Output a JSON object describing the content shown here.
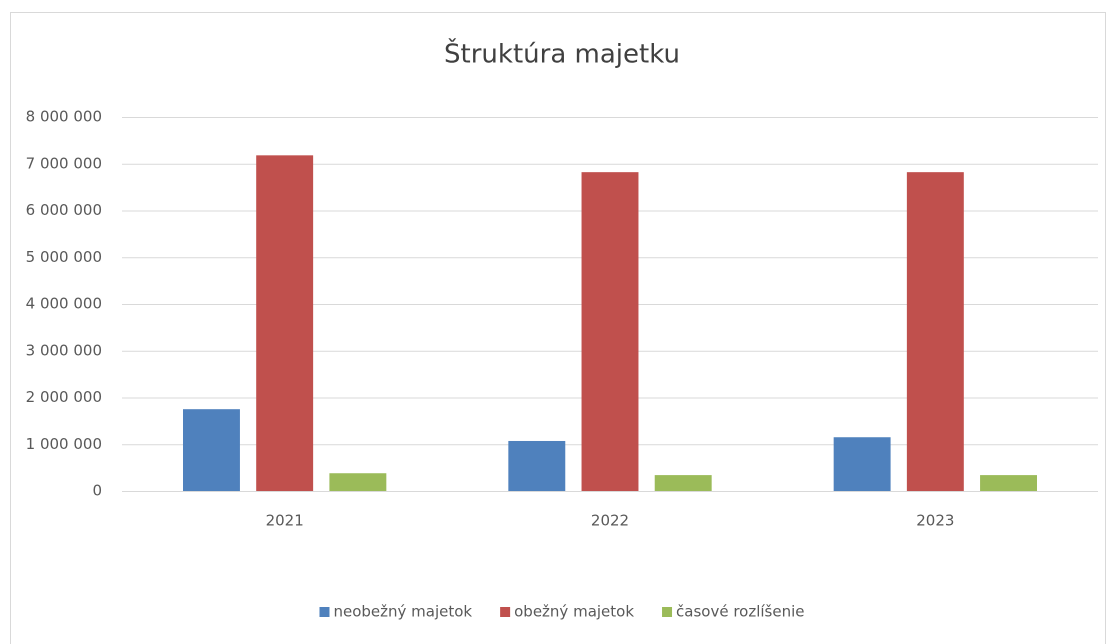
{
  "chart_data": {
    "type": "bar",
    "title": "Štruktúra majetku",
    "categories": [
      "2021",
      "2022",
      "2023"
    ],
    "series": [
      {
        "name": "neobežný majetok",
        "color": "#4f81bd",
        "values": [
          1750000,
          1070000,
          1150000
        ]
      },
      {
        "name": "obežný majetok",
        "color": "#c0504d",
        "values": [
          7180000,
          6820000,
          6820000
        ]
      },
      {
        "name": "časové rozlíšenie",
        "color": "#9bbb59",
        "values": [
          380000,
          340000,
          340000
        ]
      }
    ],
    "ylim": [
      0,
      8000000
    ],
    "yticks": [
      0,
      {
        "value": 1000000,
        "label": "1 000 000"
      },
      {
        "value": 2000000,
        "label": "2 000 000"
      },
      {
        "value": 3000000,
        "label": "3 000 000"
      },
      {
        "value": 4000000,
        "label": "4 000 000"
      },
      {
        "value": 5000000,
        "label": "5 000 000"
      },
      {
        "value": 6000000,
        "label": "6 000 000"
      },
      {
        "value": 7000000,
        "label": "7 000 000"
      },
      {
        "value": 8000000,
        "label": "8 000 000"
      }
    ],
    "grid": true,
    "legend": "bottom"
  }
}
